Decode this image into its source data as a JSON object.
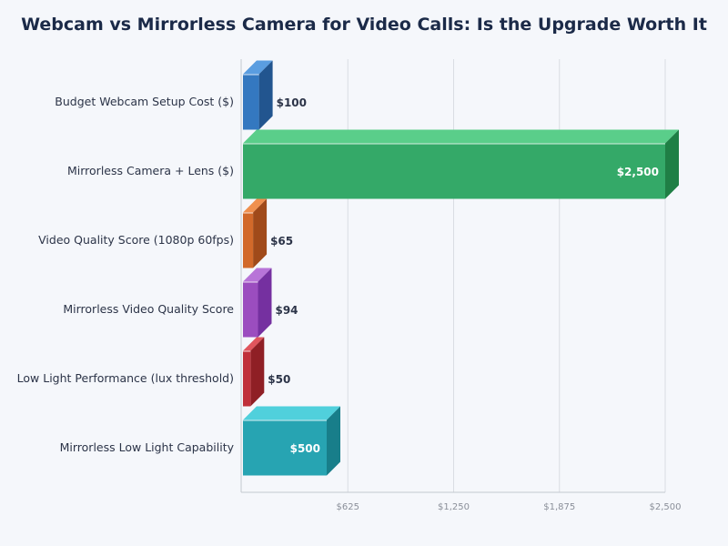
{
  "chart_data": {
    "type": "bar",
    "orientation": "horizontal",
    "style": "3d",
    "title": "Webcam vs Mirrorless Camera for Video Calls: Is the Upgrade Worth It",
    "xlabel": "",
    "ylabel": "",
    "categories": [
      "Budget Webcam Setup Cost ($)",
      "Mirrorless Camera + Lens ($)",
      "Video Quality Score (1080p 60fps)",
      "Mirrorless Video Quality Score",
      "Low Light Performance (lux threshold)",
      "Mirrorless Low Light Capability"
    ],
    "values": [
      100,
      2500,
      65,
      94,
      50,
      500
    ],
    "data_labels": [
      "$100",
      "$2,500",
      "$65",
      "$94",
      "$50",
      "$500"
    ],
    "colors": [
      "#3478c0",
      "#34a968",
      "#d2692a",
      "#9b4dbf",
      "#c0303a",
      "#27a4b2"
    ],
    "side_colors": [
      "#22558f",
      "#1f7f45",
      "#a04a1a",
      "#7530a0",
      "#8f1f25",
      "#187e8a"
    ],
    "top_colors": [
      "#5a9de0",
      "#5ace8a",
      "#f0904f",
      "#b874d8",
      "#e0555d",
      "#50d0dc"
    ],
    "xlim": [
      0,
      2500
    ],
    "xticks": [
      625,
      1250,
      1875,
      2500
    ],
    "xtick_labels": [
      "$625",
      "$1,250",
      "$1,875",
      "$2,500"
    ],
    "grid": true,
    "legend": "none"
  }
}
